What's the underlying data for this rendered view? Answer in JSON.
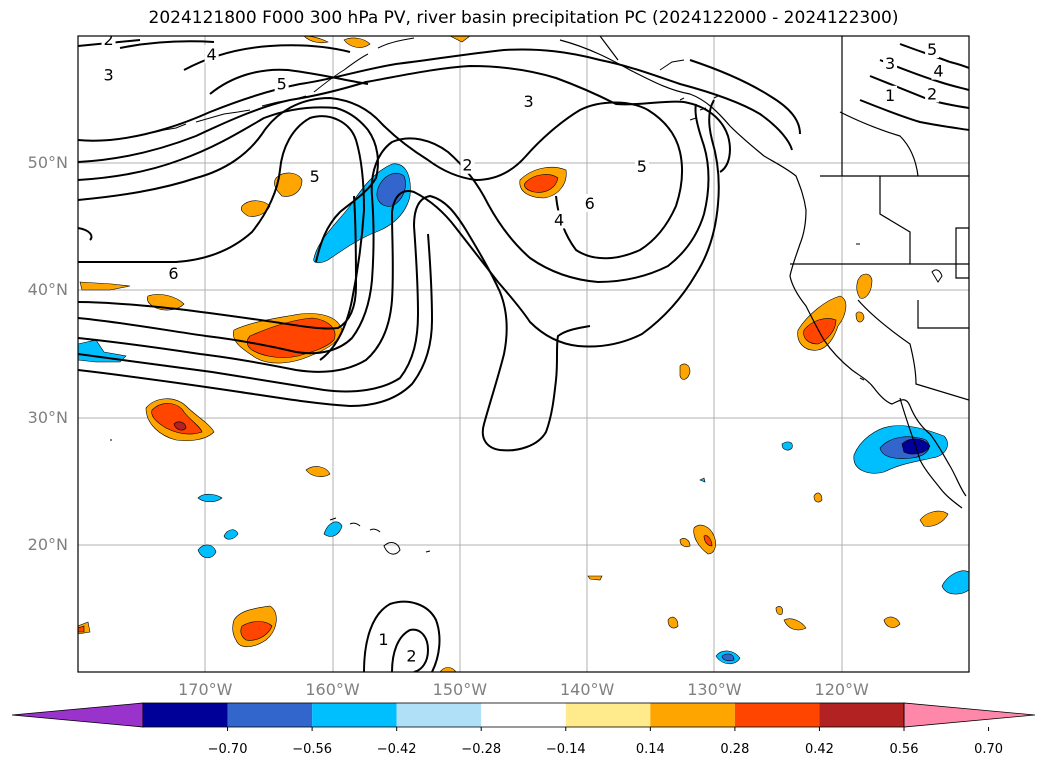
{
  "title": "2024121800 F000 300 hPa PV, river basin precipitation PC (2024122000 - 2024122300)",
  "map": {
    "lon_range": [
      -180,
      -110
    ],
    "lat_range": [
      10,
      60
    ],
    "lat_ticks": [
      {
        "lat": 50,
        "label": "50°N"
      },
      {
        "lat": 40,
        "label": "40°N"
      },
      {
        "lat": 30,
        "label": "30°N"
      },
      {
        "lat": 20,
        "label": "20°N"
      }
    ],
    "lon_ticks": [
      {
        "lon": -170,
        "label": "170°W"
      },
      {
        "lon": -160,
        "label": "160°W"
      },
      {
        "lon": -150,
        "label": "150°W"
      },
      {
        "lon": -140,
        "label": "140°W"
      },
      {
        "lon": -130,
        "label": "130°W"
      },
      {
        "lon": -120,
        "label": "120°W"
      }
    ],
    "contour_labels": [
      {
        "text": "2",
        "lon": -177.6,
        "lat": 59.7
      },
      {
        "text": "3",
        "lon": -177.6,
        "lat": 56.9
      },
      {
        "text": "4",
        "lon": -169.5,
        "lat": 58.5
      },
      {
        "text": "5",
        "lon": -164.0,
        "lat": 56.2
      },
      {
        "text": "5",
        "lon": -161.4,
        "lat": 48.9
      },
      {
        "text": "2",
        "lon": -149.4,
        "lat": 49.8
      },
      {
        "text": "3",
        "lon": -144.6,
        "lat": 54.8
      },
      {
        "text": "4",
        "lon": -142.2,
        "lat": 45.5
      },
      {
        "text": "6",
        "lon": -139.8,
        "lat": 46.8
      },
      {
        "text": "5",
        "lon": -135.7,
        "lat": 49.7
      },
      {
        "text": "6",
        "lon": -172.5,
        "lat": 41.3
      },
      {
        "text": "1",
        "lon": -156.0,
        "lat": 12.5
      },
      {
        "text": "2",
        "lon": -153.8,
        "lat": 11.2
      },
      {
        "text": "3",
        "lon": -116.2,
        "lat": 57.8
      },
      {
        "text": "4",
        "lon": -112.4,
        "lat": 57.2
      },
      {
        "text": "5",
        "lon": -112.9,
        "lat": 58.9
      },
      {
        "text": "1",
        "lon": -116.2,
        "lat": 55.3
      },
      {
        "text": "2",
        "lon": -112.9,
        "lat": 55.4
      }
    ]
  },
  "colorbar": {
    "colors": [
      "#9933cc",
      "#000099",
      "#3366cc",
      "#00bfff",
      "#b0e0f8",
      "#ffffff",
      "#ffeb8c",
      "#ffa500",
      "#ff4500",
      "#b22222",
      "#ff88aa"
    ],
    "labels": [
      "−0.70",
      "−0.56",
      "−0.42",
      "−0.28",
      "−0.14",
      "0.14",
      "0.28",
      "0.42",
      "0.56",
      "0.70"
    ]
  }
}
